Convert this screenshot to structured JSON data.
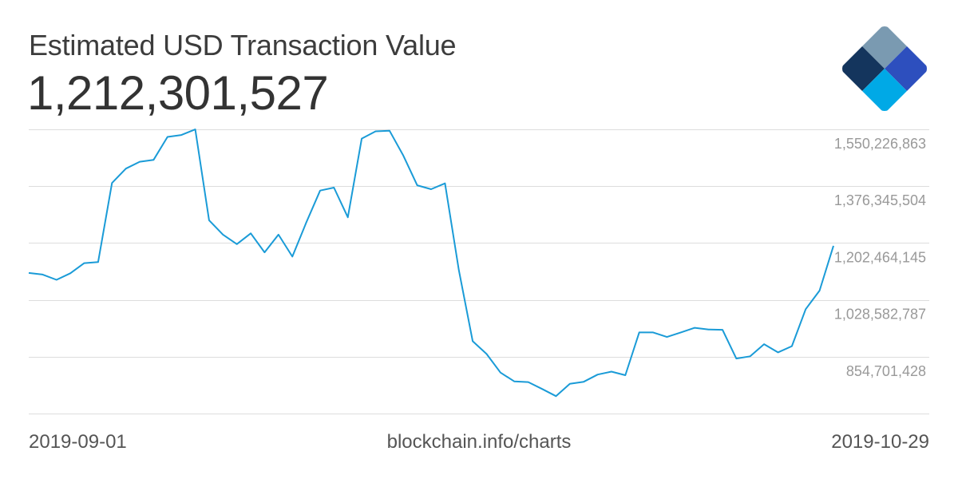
{
  "header": {
    "title": "Estimated USD Transaction Value",
    "value": "1,212,301,527"
  },
  "footer": {
    "start_date": "2019-09-01",
    "source": "blockchain.info/charts",
    "end_date": "2019-10-29"
  },
  "logo": {
    "colors": [
      "#7a9ab1",
      "#14355d",
      "#2d4fbe",
      "#00a9e6",
      "#b3d6ec"
    ]
  },
  "colors": {
    "line": "#1a9bd7",
    "grid": "#dddddd",
    "tick_text": "#999999"
  },
  "chart_data": {
    "type": "line",
    "x_start": "2019-09-01",
    "x_end": "2019-10-29",
    "y_ticks": [
      854701428,
      1028582787,
      1202464145,
      1376345504,
      1550226863
    ],
    "y_tick_labels": [
      "854,701,428",
      "1,028,582,787",
      "1,202,464,145",
      "1,376,345,504",
      "1,550,226,863"
    ],
    "ylim": [
      680820069,
      1550226863
    ],
    "grid": true,
    "series": [
      {
        "values": [
          1111000000,
          1106000000,
          1090000000,
          1110000000,
          1141000000,
          1144000000,
          1386000000,
          1430000000,
          1451000000,
          1457000000,
          1527000000,
          1533000000,
          1550000000,
          1272000000,
          1228000000,
          1199000000,
          1232000000,
          1174000000,
          1228000000,
          1161000000,
          1265000000,
          1363000000,
          1372000000,
          1281000000,
          1522000000,
          1544000000,
          1546000000,
          1470000000,
          1379000000,
          1367000000,
          1385000000,
          1119000000,
          902000000,
          863000000,
          806000000,
          779000000,
          777000000,
          756000000,
          734000000,
          772000000,
          778000000,
          800000000,
          809000000,
          798000000,
          929000000,
          929000000,
          915000000,
          929000000,
          943000000,
          938000000,
          937000000,
          849000000,
          856000000,
          893000000,
          868000000,
          887000000,
          1000000000,
          1057000000,
          1194000000
        ]
      }
    ]
  }
}
